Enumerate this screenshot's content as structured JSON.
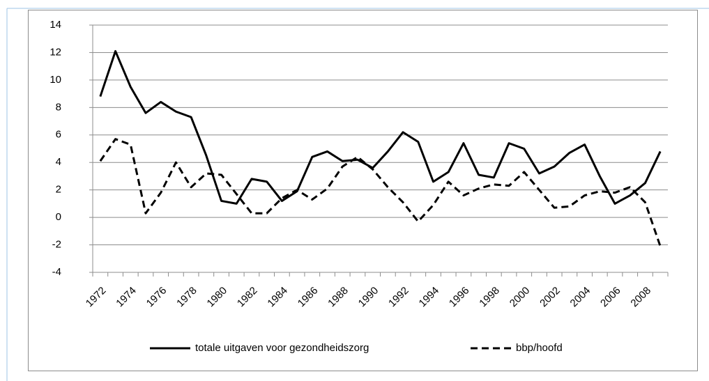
{
  "chart_data": {
    "type": "line",
    "categories": [
      "1972",
      null,
      "1974",
      null,
      "1976",
      null,
      "1978",
      null,
      "1980",
      null,
      "1982",
      null,
      "1984",
      null,
      "1986",
      null,
      "1988",
      null,
      "1990",
      null,
      "1992",
      null,
      "1994",
      null,
      "1996",
      null,
      "1998",
      null,
      "2000",
      null,
      "2002",
      null,
      "2004",
      null,
      "2006",
      null,
      "2008",
      null
    ],
    "series": [
      {
        "name": "totale uitgaven voor gezondheidszorg",
        "color": "#000000",
        "dashed": false,
        "values": [
          8.8,
          12.1,
          9.5,
          7.6,
          8.4,
          7.7,
          7.3,
          4.5,
          1.2,
          1.0,
          2.8,
          2.6,
          1.2,
          1.9,
          4.4,
          4.8,
          4.1,
          4.2,
          3.6,
          4.8,
          6.2,
          5.5,
          2.6,
          3.3,
          5.4,
          3.1,
          2.9,
          5.4,
          5.0,
          3.2,
          3.7,
          4.7,
          5.3,
          3.0,
          1.0,
          1.6,
          2.5,
          4.8
        ]
      },
      {
        "name": "bbp/hoofd",
        "color": "#000000",
        "dashed": true,
        "values": [
          4.1,
          5.7,
          5.3,
          0.3,
          1.8,
          4.0,
          2.2,
          3.2,
          3.1,
          1.7,
          0.3,
          0.3,
          1.4,
          2.0,
          1.3,
          2.1,
          3.7,
          4.4,
          3.5,
          2.2,
          1.1,
          -0.3,
          0.9,
          2.6,
          1.6,
          2.1,
          2.4,
          2.3,
          3.3,
          2.0,
          0.7,
          0.8,
          1.6,
          1.9,
          1.8,
          2.2,
          1.1,
          -2.1
        ]
      }
    ],
    "ylim": [
      -4,
      14
    ],
    "yticks": [
      -4,
      -2,
      0,
      2,
      4,
      6,
      8,
      10,
      12,
      14
    ],
    "grid": true,
    "legend": "bottom"
  }
}
